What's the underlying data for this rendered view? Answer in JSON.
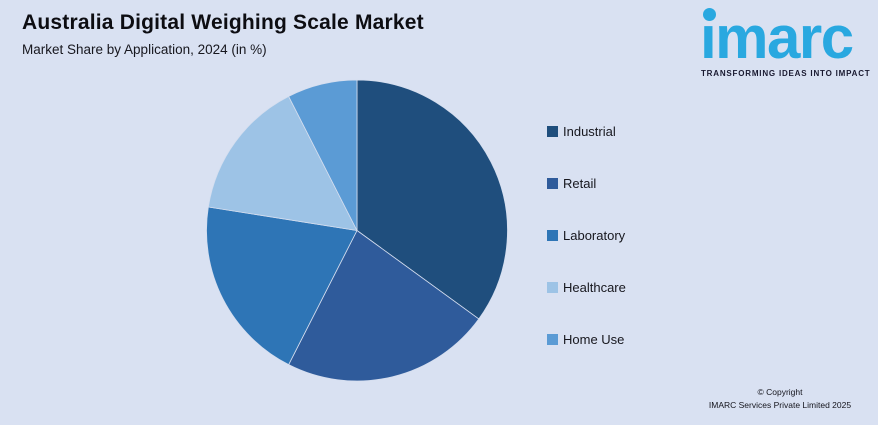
{
  "page": {
    "background": "#D9E1F2"
  },
  "header": {
    "title": "Australia Digital Weighing Scale Market",
    "subtitle": "Market Share by Application, 2024 (in %)"
  },
  "logo": {
    "wordmark": "imarc",
    "tagline": "TRANSFORMING IDEAS INTO IMPACT",
    "brand_color": "#29A8E0",
    "tagline_color": "#191930"
  },
  "footer": {
    "line1": "© Copyright",
    "line2": "IMARC Services Private Limited 2025"
  },
  "chart_data": {
    "type": "pie",
    "title": "Australia Digital Weighing Scale Market",
    "subtitle": "Market Share by Application, 2024 (in %)",
    "unit": "%",
    "start_angle_deg": 0,
    "direction": "clockwise",
    "legend_position": "right",
    "slice_separator_color": "#D5DEEF",
    "series": [
      {
        "name": "Industrial",
        "value": 35,
        "color": "#1F4E7D"
      },
      {
        "name": "Retail",
        "value": 22.5,
        "color": "#2F5B9B"
      },
      {
        "name": "Laboratory",
        "value": 20,
        "color": "#2E75B6"
      },
      {
        "name": "Healthcare",
        "value": 15,
        "color": "#9DC3E6"
      },
      {
        "name": "Home Use",
        "value": 7.5,
        "color": "#5B9BD5"
      }
    ]
  }
}
